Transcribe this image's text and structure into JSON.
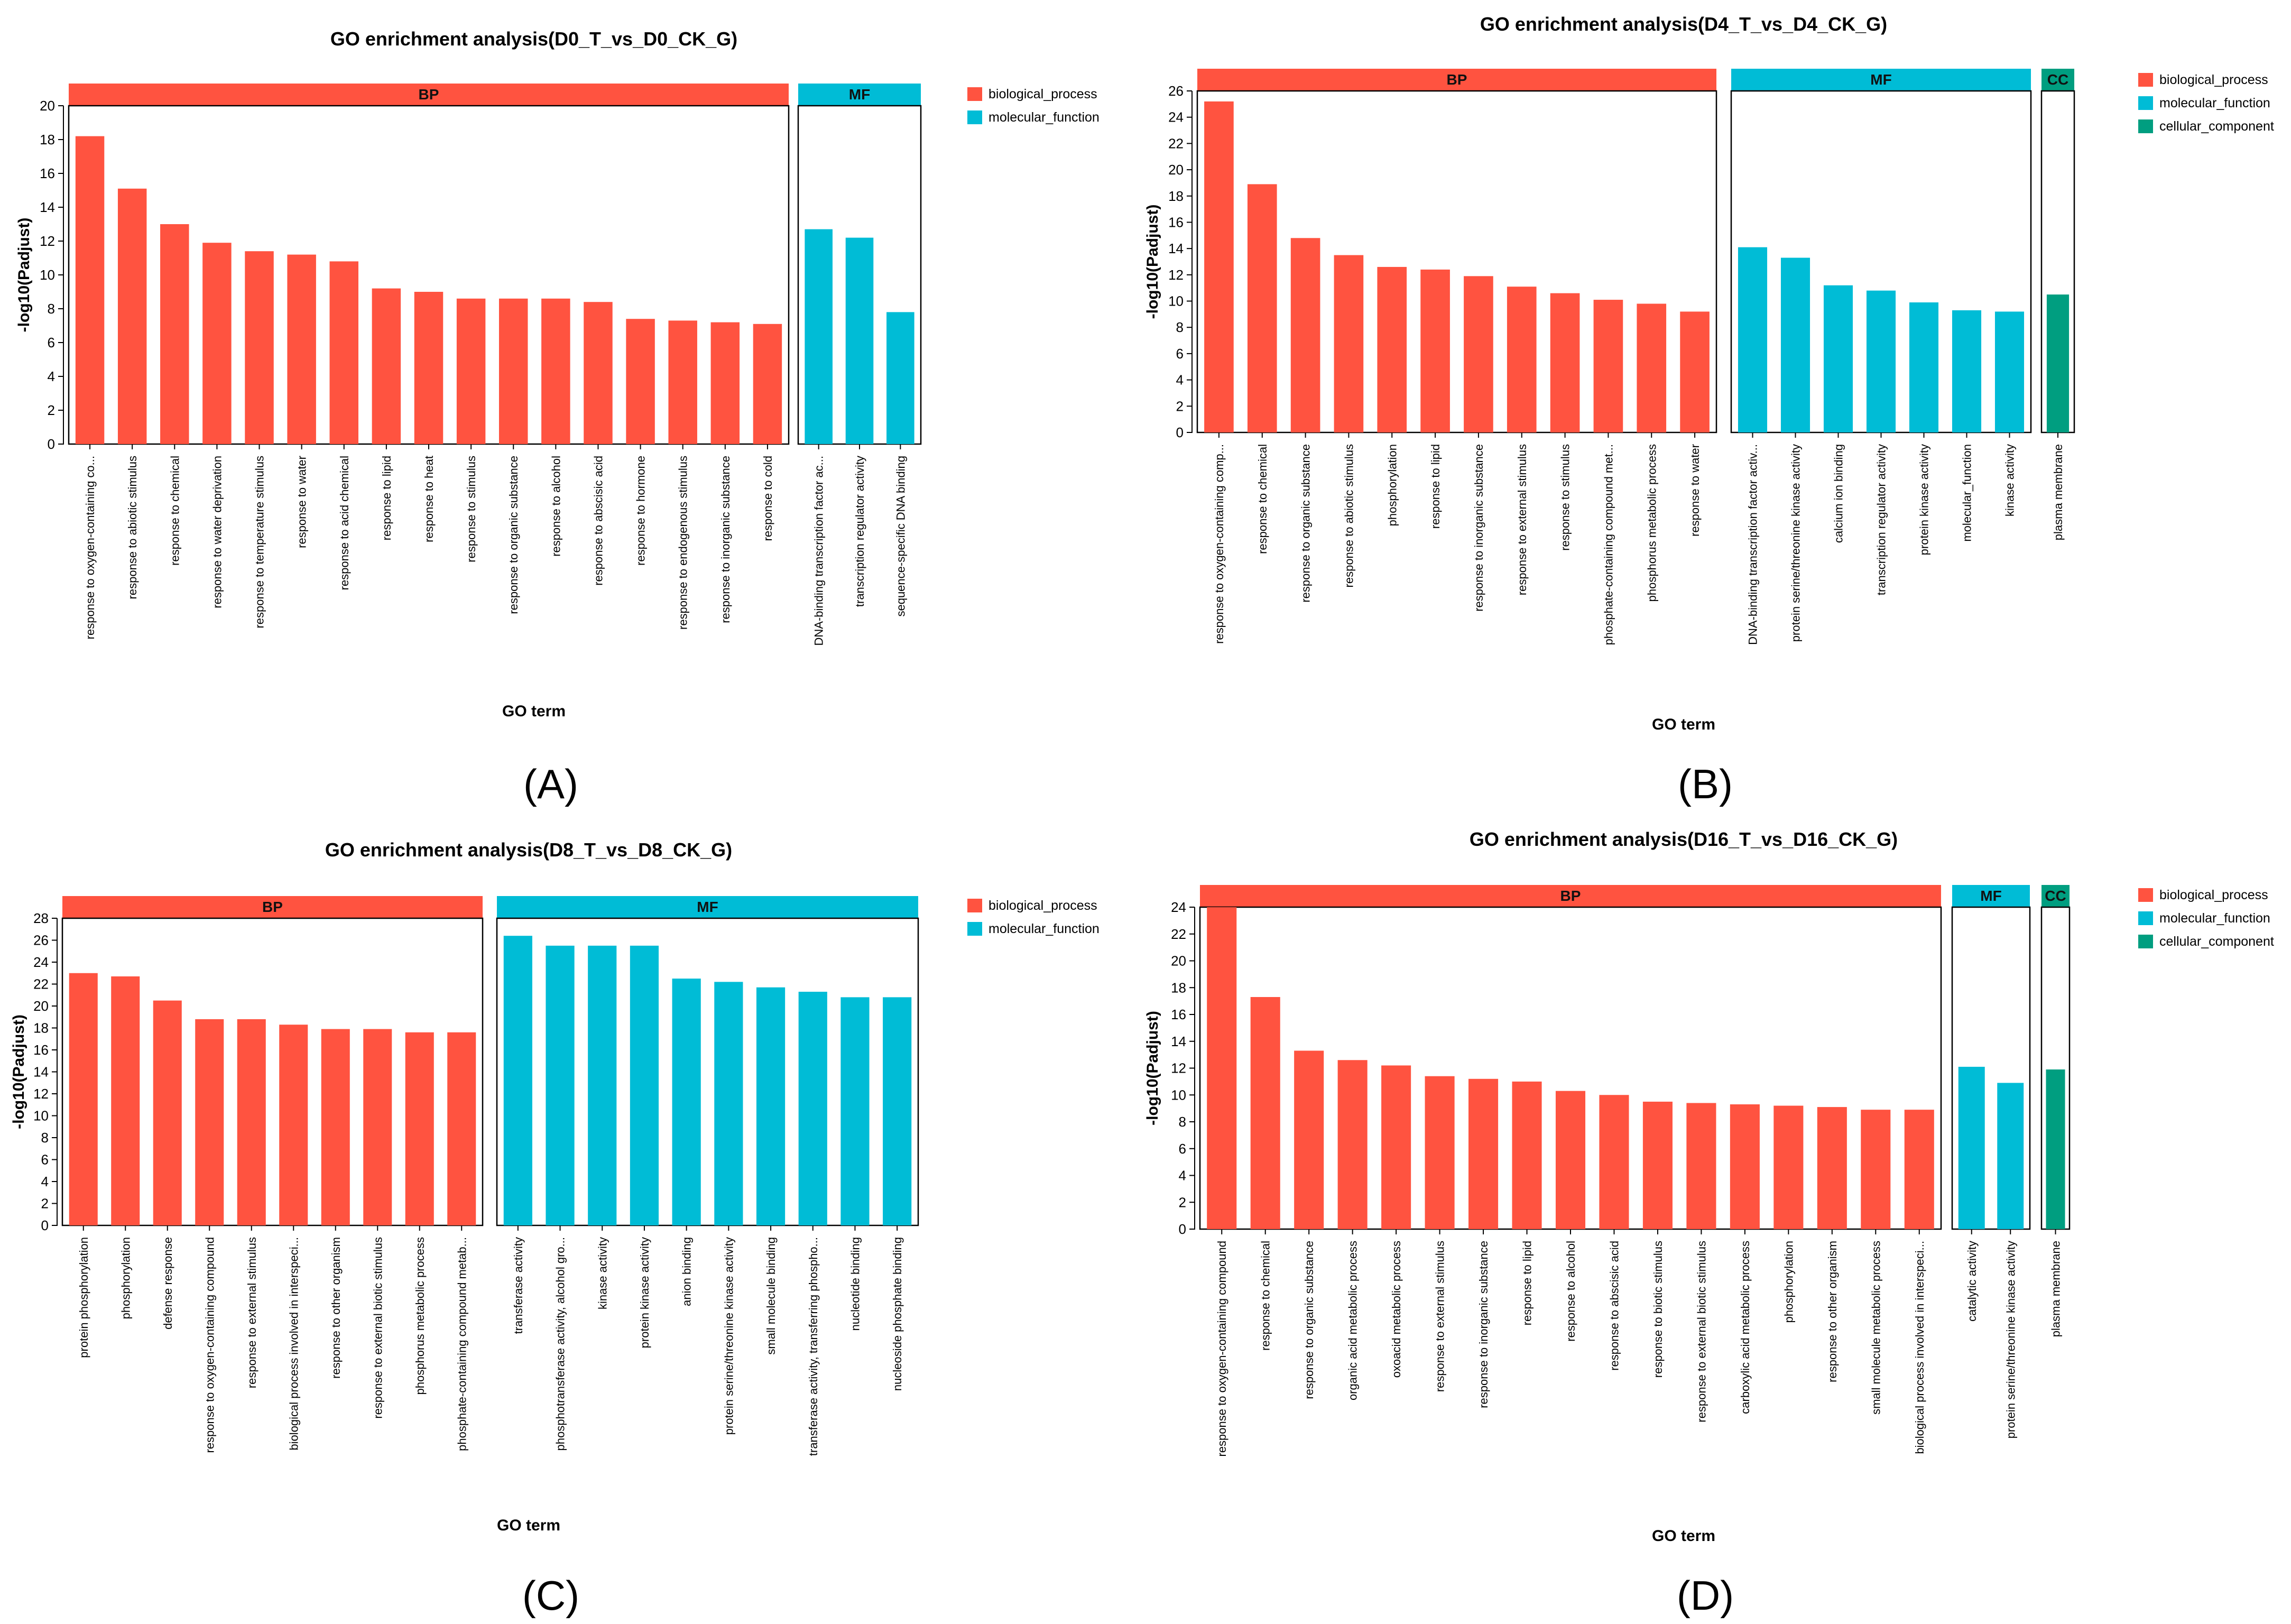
{
  "colors": {
    "BP": "#FF5340",
    "MF": "#00BCD6",
    "CC": "#009E80",
    "axis": "#000000",
    "text": "#000000"
  },
  "legend_labels": {
    "BP": "biological_process",
    "MF": "molecular_function",
    "CC": "cellular_component"
  },
  "chart_data": [
    {
      "type": "bar",
      "panel_label": "(A)",
      "title": "GO enrichment analysis(D0_T_vs_D0_CK_G)",
      "xlabel": "GO term",
      "ylabel": "-log10(Padjust)",
      "ylim": [
        0,
        20
      ],
      "ytick_step": 2,
      "legend": [
        "BP",
        "MF"
      ],
      "groups": [
        {
          "key": "BP",
          "label": "BP",
          "categories": [
            "response to oxygen-containing co...",
            "response to abiotic stimulus",
            "response to chemical",
            "response to water deprivation",
            "response to temperature stimulus",
            "response to water",
            "response to acid chemical",
            "response to lipid",
            "response to heat",
            "response to stimulus",
            "response to organic substance",
            "response to alcohol",
            "response to abscisic acid",
            "response to hormone",
            "response to endogenous stimulus",
            "response to inorganic substance",
            "response to cold"
          ],
          "values": [
            18.2,
            15.1,
            13.0,
            11.9,
            11.4,
            11.2,
            10.8,
            9.2,
            9.0,
            8.6,
            8.6,
            8.6,
            8.4,
            7.4,
            7.3,
            7.2,
            7.1
          ]
        },
        {
          "key": "MF",
          "label": "MF",
          "categories": [
            "DNA-binding transcription factor ac...",
            "transcription regulator activity",
            "sequence-specific DNA binding"
          ],
          "values": [
            12.7,
            12.2,
            7.8
          ]
        }
      ]
    },
    {
      "type": "bar",
      "panel_label": "(B)",
      "title": "GO enrichment analysis(D4_T_vs_D4_CK_G)",
      "xlabel": "GO term",
      "ylabel": "-log10(Padjust)",
      "ylim": [
        0,
        26
      ],
      "ytick_step": 2,
      "legend": [
        "BP",
        "MF",
        "CC"
      ],
      "groups": [
        {
          "key": "BP",
          "label": "BP",
          "categories": [
            "response to oxygen-containing comp...",
            "response to chemical",
            "response to organic substance",
            "response to abiotic stimulus",
            "phosphorylation",
            "response to lipid",
            "response to inorganic substance",
            "response to external stimulus",
            "response to stimulus",
            "phosphate-containing compound met...",
            "phosphorus metabolic process",
            "response to water"
          ],
          "values": [
            25.2,
            18.9,
            14.8,
            13.5,
            12.6,
            12.4,
            11.9,
            11.1,
            10.6,
            10.1,
            9.8,
            9.2
          ]
        },
        {
          "key": "MF",
          "label": "MF",
          "categories": [
            "DNA-binding transcription factor activ...",
            "protein serine/threonine kinase activity",
            "calcium ion binding",
            "transcription regulator activity",
            "protein kinase activity",
            "molecular_function",
            "kinase activity"
          ],
          "values": [
            14.1,
            13.3,
            11.2,
            10.8,
            9.9,
            9.3,
            9.2
          ]
        },
        {
          "key": "CC",
          "label": "CC",
          "categories": [
            "plasma membrane"
          ],
          "values": [
            10.5
          ]
        }
      ]
    },
    {
      "type": "bar",
      "panel_label": "(C)",
      "title": "GO enrichment analysis(D8_T_vs_D8_CK_G)",
      "xlabel": "GO term",
      "ylabel": "-log10(Padjust)",
      "ylim": [
        0,
        28
      ],
      "ytick_step": 2,
      "legend": [
        "BP",
        "MF"
      ],
      "groups": [
        {
          "key": "BP",
          "label": "BP",
          "categories": [
            "protein phosphorylation",
            "phosphorylation",
            "defense response",
            "response to oxygen-containing compound",
            "response to external stimulus",
            "biological process involved in interspeci...",
            "response to other organism",
            "response to external biotic stimulus",
            "phosphorus metabolic process",
            "phosphate-containing compound metab..."
          ],
          "values": [
            23.0,
            22.7,
            20.5,
            18.8,
            18.8,
            18.3,
            17.9,
            17.9,
            17.6,
            17.6
          ]
        },
        {
          "key": "MF",
          "label": "MF",
          "categories": [
            "transferase activity",
            "phosphotransferase activity, alcohol gro...",
            "kinase activity",
            "protein kinase activity",
            "anion binding",
            "protein serine/threonine kinase activity",
            "small molecule binding",
            "transferase activity, transferring phospho...",
            "nucleotide binding",
            "nucleoside phosphate binding"
          ],
          "values": [
            26.4,
            25.5,
            25.5,
            25.5,
            22.5,
            22.2,
            21.7,
            21.3,
            20.8,
            20.8
          ]
        }
      ]
    },
    {
      "type": "bar",
      "panel_label": "(D)",
      "title": "GO enrichment analysis(D16_T_vs_D16_CK_G)",
      "xlabel": "GO term",
      "ylabel": "-log10(Padjust)",
      "ylim": [
        0,
        24
      ],
      "ytick_step": 2,
      "legend": [
        "BP",
        "MF",
        "CC"
      ],
      "groups": [
        {
          "key": "BP",
          "label": "BP",
          "categories": [
            "response to oxygen-containing compound",
            "response to chemical",
            "response to organic substance",
            "organic acid metabolic process",
            "oxoacid metabolic process",
            "response to external stimulus",
            "response to inorganic substance",
            "response to lipid",
            "response to alcohol",
            "response to abscisic acid",
            "response to biotic stimulus",
            "response to external biotic stimulus",
            "carboxylic acid metabolic process",
            "phosphorylation",
            "response to other organism",
            "small molecule metabolic process",
            "biological process involved in interspeci..."
          ],
          "values": [
            24.0,
            17.3,
            13.3,
            12.6,
            12.2,
            11.4,
            11.2,
            11.0,
            10.3,
            10.0,
            9.5,
            9.4,
            9.3,
            9.2,
            9.1,
            8.9,
            8.9
          ]
        },
        {
          "key": "MF",
          "label": "MF",
          "categories": [
            "catalytic activity",
            "protein serine/threonine kinase activity"
          ],
          "values": [
            12.1,
            10.9
          ]
        },
        {
          "key": "CC",
          "label": "CC",
          "categories": [
            "plasma membrane"
          ],
          "values": [
            11.9
          ]
        }
      ]
    }
  ]
}
